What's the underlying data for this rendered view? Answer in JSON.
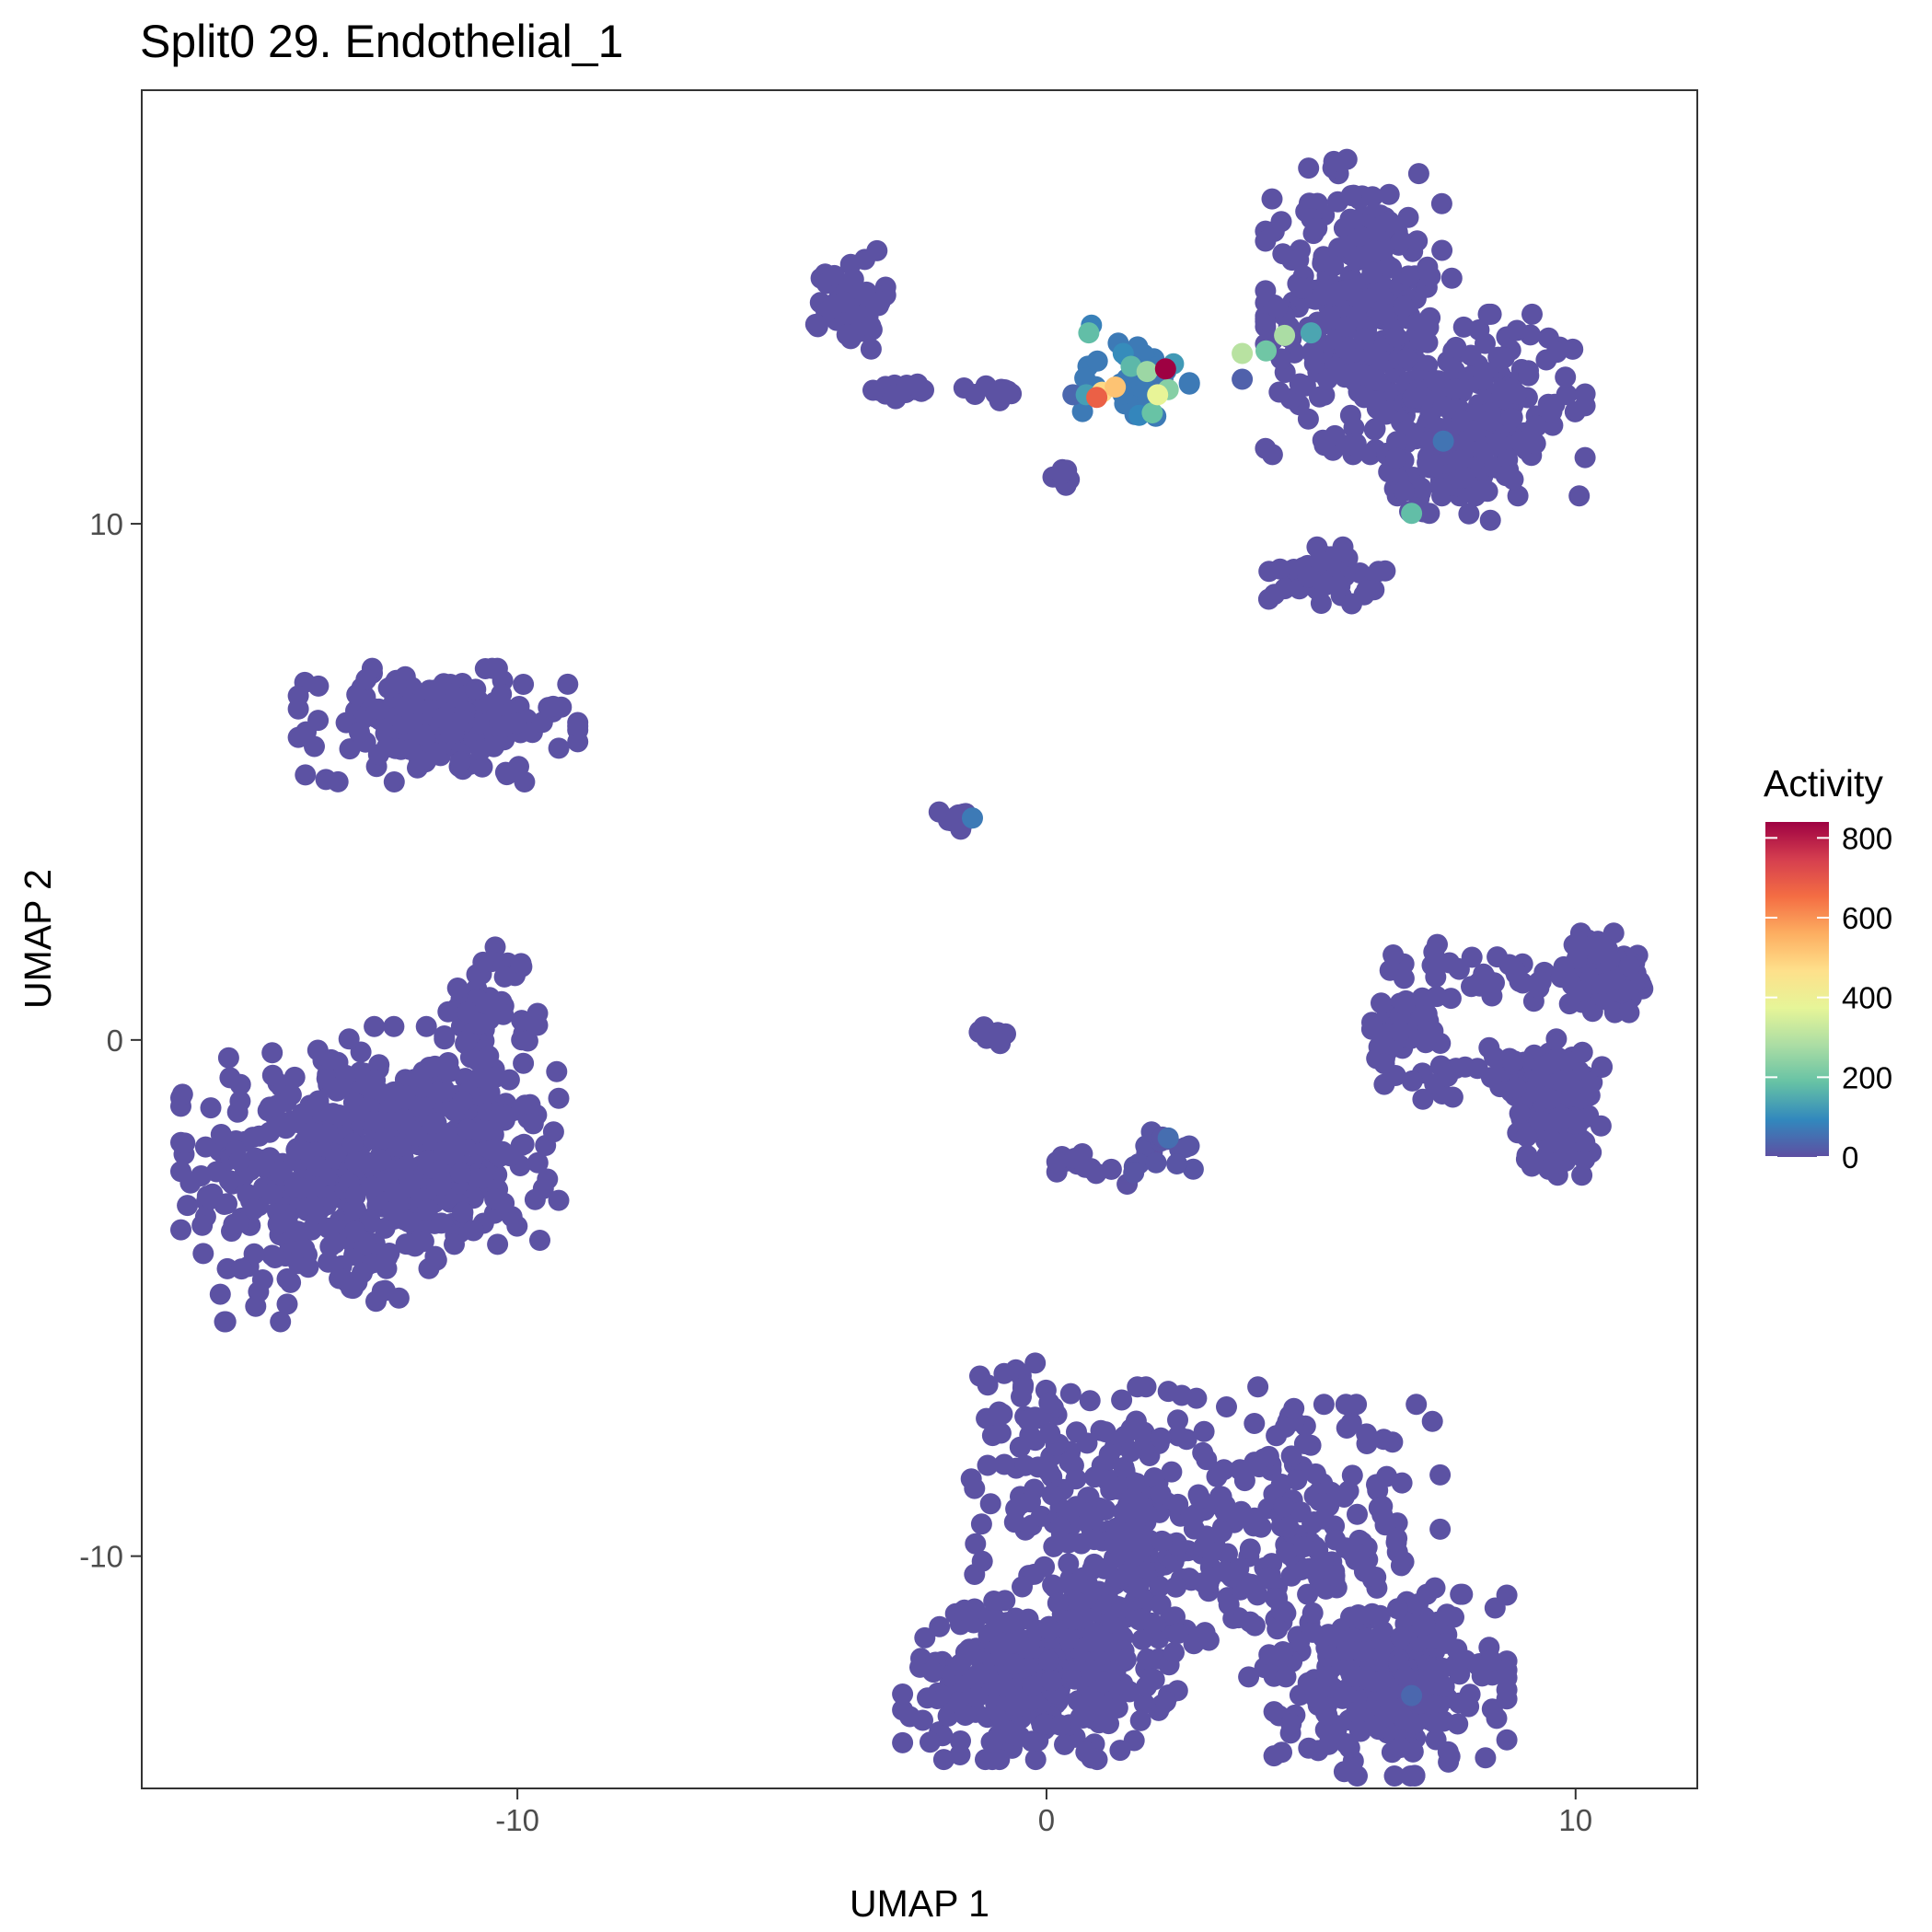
{
  "chart_data": {
    "type": "scatter",
    "title": "Split0 29. Endothelial_1",
    "xlabel": "UMAP 1",
    "ylabel": "UMAP 2",
    "xlim": [
      -17.1,
      12.3
    ],
    "ylim": [
      -14.5,
      18.4
    ],
    "x_ticks": [
      -10,
      0,
      10
    ],
    "y_ticks": [
      -10,
      0,
      10
    ],
    "grid": false,
    "legend": {
      "title": "Activity",
      "placement": "right",
      "range": [
        0,
        840
      ],
      "ticks": [
        0,
        200,
        400,
        600,
        800
      ],
      "palette": [
        "#5E4FA2",
        "#3288BD",
        "#66C2A5",
        "#ABDDA4",
        "#E6F598",
        "#FEE08B",
        "#FDAE61",
        "#F46D43",
        "#D53E4F",
        "#9E0142"
      ]
    },
    "clusters": [
      {
        "x": -13.5,
        "y": -2.6,
        "sx": 1.3,
        "sy": 1.3,
        "n": 380,
        "activity": 5
      },
      {
        "x": -11.2,
        "y": -2.2,
        "sx": 0.9,
        "sy": 0.8,
        "n": 200,
        "activity": 5
      },
      {
        "x": -10.5,
        "y": 0.6,
        "sx": 0.4,
        "sy": 0.6,
        "n": 55,
        "activity": 5
      },
      {
        "x": -11.5,
        "y": 6.1,
        "sx": 1.2,
        "sy": 0.5,
        "n": 190,
        "activity": 5
      },
      {
        "x": -1.7,
        "y": 4.3,
        "sx": 0.15,
        "sy": 0.12,
        "n": 12,
        "activity": 5
      },
      {
        "x": -1.2,
        "y": 0.15,
        "sx": 0.35,
        "sy": 0.1,
        "n": 10,
        "activity": 5
      },
      {
        "x": -3.7,
        "y": 14.3,
        "sx": 0.3,
        "sy": 0.45,
        "n": 55,
        "activity": 5
      },
      {
        "x": -2.6,
        "y": 12.6,
        "sx": 0.35,
        "sy": 0.08,
        "n": 16,
        "activity": 5
      },
      {
        "x": -0.9,
        "y": 12.5,
        "sx": 0.3,
        "sy": 0.1,
        "n": 10,
        "activity": 5
      },
      {
        "x": 0.3,
        "y": 10.9,
        "sx": 0.1,
        "sy": 0.1,
        "n": 8,
        "activity": 5
      },
      {
        "x": 1.6,
        "y": 12.8,
        "sx": 0.5,
        "sy": 0.4,
        "n": 32,
        "activity": 70
      },
      {
        "x": 5.9,
        "y": 14.2,
        "sx": 0.8,
        "sy": 1.3,
        "n": 310,
        "activity": 5
      },
      {
        "x": 8.2,
        "y": 12.3,
        "sx": 0.9,
        "sy": 0.8,
        "n": 200,
        "activity": 5
      },
      {
        "x": 5.3,
        "y": 9.0,
        "sx": 0.5,
        "sy": 0.25,
        "n": 50,
        "activity": 5
      },
      {
        "x": 7.5,
        "y": 10.9,
        "sx": 0.6,
        "sy": 0.5,
        "n": 60,
        "activity": 5
      },
      {
        "x": 6.8,
        "y": 0.3,
        "sx": 0.35,
        "sy": 0.3,
        "n": 45,
        "activity": 5
      },
      {
        "x": 8.5,
        "y": 1.3,
        "sx": 1.2,
        "sy": 0.25,
        "n": 40,
        "activity": 5
      },
      {
        "x": 10.5,
        "y": 1.3,
        "sx": 0.35,
        "sy": 0.35,
        "n": 90,
        "activity": 5
      },
      {
        "x": 9.6,
        "y": -1.3,
        "sx": 0.4,
        "sy": 0.6,
        "n": 130,
        "activity": 5
      },
      {
        "x": 8.3,
        "y": -0.6,
        "sx": 1.0,
        "sy": 0.25,
        "n": 40,
        "activity": 5
      },
      {
        "x": 0.9,
        "y": -2.4,
        "sx": 0.5,
        "sy": 0.2,
        "n": 14,
        "activity": 5
      },
      {
        "x": 2.2,
        "y": -2.2,
        "sx": 0.35,
        "sy": 0.25,
        "n": 14,
        "activity": 10
      },
      {
        "x": -0.3,
        "y": -12.4,
        "sx": 1.1,
        "sy": 0.7,
        "n": 280,
        "activity": 5
      },
      {
        "x": 6.5,
        "y": -12.5,
        "sx": 1.0,
        "sy": 0.8,
        "n": 270,
        "activity": 5
      },
      {
        "x": 1.5,
        "y": -9.8,
        "sx": 1.3,
        "sy": 1.4,
        "n": 260,
        "activity": 5
      },
      {
        "x": 4.8,
        "y": -9.7,
        "sx": 1.2,
        "sy": 1.2,
        "n": 190,
        "activity": 5
      },
      {
        "x": -0.4,
        "y": -7.8,
        "sx": 0.5,
        "sy": 0.7,
        "n": 40,
        "activity": 5
      }
    ],
    "highlight_points": [
      {
        "x": 2.25,
        "y": 13.0,
        "activity": 840
      },
      {
        "x": 0.95,
        "y": 12.45,
        "activity": 680
      },
      {
        "x": 1.3,
        "y": 12.65,
        "activity": 520
      },
      {
        "x": 1.05,
        "y": 12.55,
        "activity": 480
      },
      {
        "x": 2.1,
        "y": 12.5,
        "activity": 380
      },
      {
        "x": 3.7,
        "y": 13.3,
        "activity": 300
      },
      {
        "x": 4.5,
        "y": 13.65,
        "activity": 280
      },
      {
        "x": 1.9,
        "y": 12.95,
        "activity": 260
      },
      {
        "x": 2.3,
        "y": 12.6,
        "activity": 230
      },
      {
        "x": 4.15,
        "y": 13.35,
        "activity": 200
      },
      {
        "x": 2.0,
        "y": 12.15,
        "activity": 190
      },
      {
        "x": 0.8,
        "y": 13.7,
        "activity": 180
      },
      {
        "x": 6.9,
        "y": 10.2,
        "activity": 180
      },
      {
        "x": 1.6,
        "y": 13.05,
        "activity": 170
      },
      {
        "x": 5.0,
        "y": 13.7,
        "activity": 140
      },
      {
        "x": 0.75,
        "y": 12.5,
        "activity": 130
      },
      {
        "x": 2.4,
        "y": 13.1,
        "activity": 120
      },
      {
        "x": 1.45,
        "y": 13.3,
        "activity": 100
      },
      {
        "x": 1.75,
        "y": 12.1,
        "activity": 90
      },
      {
        "x": 0.85,
        "y": 13.85,
        "activity": 80
      },
      {
        "x": 7.5,
        "y": 11.6,
        "activity": 60
      },
      {
        "x": -1.4,
        "y": 4.3,
        "activity": 70
      },
      {
        "x": 6.9,
        "y": -12.7,
        "activity": 40
      },
      {
        "x": 2.3,
        "y": -1.9,
        "activity": 50
      },
      {
        "x": 0.5,
        "y": 12.5,
        "activity": 40
      },
      {
        "x": 2.2,
        "y": 12.8,
        "activity": 60
      },
      {
        "x": 3.7,
        "y": 12.8,
        "activity": 30
      }
    ]
  }
}
